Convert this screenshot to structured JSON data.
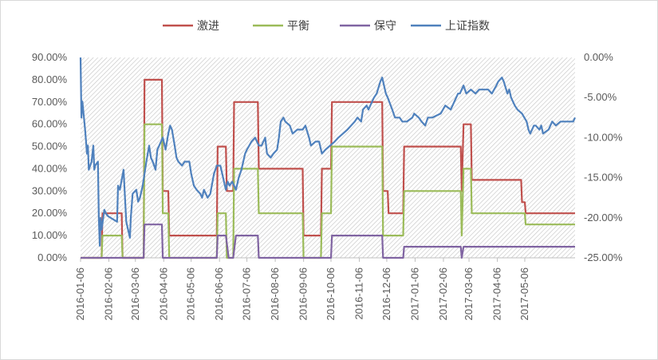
{
  "chart_data": {
    "type": "line",
    "legend": {
      "position": "top"
    },
    "grid": {
      "pattern": "hatched"
    },
    "left_axis": {
      "ylim": [
        0,
        90
      ],
      "ticks": [
        "0.00%",
        "10.00%",
        "20.00%",
        "30.00%",
        "40.00%",
        "50.00%",
        "60.00%",
        "70.00%",
        "80.00%",
        "90.00%"
      ]
    },
    "right_axis": {
      "ylim": [
        -25,
        0
      ],
      "ticks": [
        "-25.00%",
        "-20.00%",
        "-15.00%",
        "-10.00%",
        "-5.00%",
        "0.00%"
      ]
    },
    "x_range": [
      "2016-01-06",
      "2017-06-30"
    ],
    "x_ticks": [
      "2016-01-06",
      "2016-02-06",
      "2016-03-06",
      "2016-04-06",
      "2016-05-06",
      "2016-06-06",
      "2016-07-06",
      "2016-08-06",
      "2016-09-06",
      "2016-10-06",
      "2016-11-06",
      "2016-12-06",
      "2017-01-06",
      "2017-02-06",
      "2017-03-06",
      "2017-04-06",
      "2017-05-06"
    ],
    "series": [
      {
        "name": "激进",
        "color": "#c0504d",
        "axis": "left",
        "points": [
          [
            "2016-01-06",
            0
          ],
          [
            "2016-01-29",
            0
          ],
          [
            "2016-01-30",
            20
          ],
          [
            "2016-02-20",
            20
          ],
          [
            "2016-02-21",
            0
          ],
          [
            "2016-03-15",
            0
          ],
          [
            "2016-03-16",
            80
          ],
          [
            "2016-04-04",
            80
          ],
          [
            "2016-04-05",
            30
          ],
          [
            "2016-04-11",
            30
          ],
          [
            "2016-04-12",
            10
          ],
          [
            "2016-06-03",
            10
          ],
          [
            "2016-06-04",
            50
          ],
          [
            "2016-06-13",
            50
          ],
          [
            "2016-06-14",
            30
          ],
          [
            "2016-06-21",
            30
          ],
          [
            "2016-06-22",
            70
          ],
          [
            "2016-07-18",
            70
          ],
          [
            "2016-07-19",
            40
          ],
          [
            "2016-09-05",
            40
          ],
          [
            "2016-09-06",
            10
          ],
          [
            "2016-09-25",
            10
          ],
          [
            "2016-09-26",
            40
          ],
          [
            "2016-10-06",
            40
          ],
          [
            "2016-10-07",
            70
          ],
          [
            "2016-12-01",
            70
          ],
          [
            "2016-12-02",
            30
          ],
          [
            "2016-12-07",
            30
          ],
          [
            "2016-12-08",
            20
          ],
          [
            "2016-12-24",
            20
          ],
          [
            "2016-12-25",
            50
          ],
          [
            "2017-02-25",
            50
          ],
          [
            "2017-02-26",
            30
          ],
          [
            "2017-02-28",
            60
          ],
          [
            "2017-03-08",
            60
          ],
          [
            "2017-03-09",
            35
          ],
          [
            "2017-05-02",
            35
          ],
          [
            "2017-05-03",
            25
          ],
          [
            "2017-05-06",
            25
          ],
          [
            "2017-05-07",
            20
          ],
          [
            "2017-06-30",
            20
          ]
        ]
      },
      {
        "name": "平衡",
        "color": "#9bbb59",
        "axis": "left",
        "points": [
          [
            "2016-01-06",
            0
          ],
          [
            "2016-01-29",
            0
          ],
          [
            "2016-01-30",
            10
          ],
          [
            "2016-02-20",
            10
          ],
          [
            "2016-02-21",
            0
          ],
          [
            "2016-03-15",
            0
          ],
          [
            "2016-03-16",
            60
          ],
          [
            "2016-04-04",
            60
          ],
          [
            "2016-04-05",
            20
          ],
          [
            "2016-04-11",
            20
          ],
          [
            "2016-04-12",
            0
          ],
          [
            "2016-06-03",
            0
          ],
          [
            "2016-06-04",
            20
          ],
          [
            "2016-06-13",
            20
          ],
          [
            "2016-06-14",
            0
          ],
          [
            "2016-06-21",
            0
          ],
          [
            "2016-06-22",
            40
          ],
          [
            "2016-07-18",
            40
          ],
          [
            "2016-07-19",
            20
          ],
          [
            "2016-09-05",
            20
          ],
          [
            "2016-09-06",
            0
          ],
          [
            "2016-09-25",
            0
          ],
          [
            "2016-09-26",
            20
          ],
          [
            "2016-10-06",
            20
          ],
          [
            "2016-10-07",
            50
          ],
          [
            "2016-12-01",
            50
          ],
          [
            "2016-12-02",
            10
          ],
          [
            "2016-12-24",
            10
          ],
          [
            "2016-12-25",
            30
          ],
          [
            "2017-02-25",
            30
          ],
          [
            "2017-02-26",
            10
          ],
          [
            "2017-02-28",
            40
          ],
          [
            "2017-03-08",
            40
          ],
          [
            "2017-03-09",
            20
          ],
          [
            "2017-05-06",
            20
          ],
          [
            "2017-05-07",
            15
          ],
          [
            "2017-06-30",
            15
          ]
        ]
      },
      {
        "name": "保守",
        "color": "#8064a2",
        "axis": "left",
        "points": [
          [
            "2016-01-06",
            0
          ],
          [
            "2016-03-15",
            0
          ],
          [
            "2016-03-16",
            15
          ],
          [
            "2016-04-04",
            15
          ],
          [
            "2016-04-05",
            0
          ],
          [
            "2016-06-03",
            0
          ],
          [
            "2016-06-04",
            10
          ],
          [
            "2016-06-13",
            10
          ],
          [
            "2016-06-16",
            0
          ],
          [
            "2016-06-21",
            0
          ],
          [
            "2016-06-24",
            10
          ],
          [
            "2016-07-18",
            10
          ],
          [
            "2016-07-19",
            0
          ],
          [
            "2016-09-25",
            0
          ],
          [
            "2016-09-26",
            0
          ],
          [
            "2016-10-06",
            0
          ],
          [
            "2016-10-07",
            10
          ],
          [
            "2016-12-01",
            10
          ],
          [
            "2016-12-02",
            0
          ],
          [
            "2016-12-24",
            0
          ],
          [
            "2016-12-25",
            5
          ],
          [
            "2017-02-25",
            5
          ],
          [
            "2017-02-26",
            0
          ],
          [
            "2017-02-28",
            5
          ],
          [
            "2017-06-30",
            5
          ]
        ]
      },
      {
        "name": "上证指数",
        "color": "#4f81bd",
        "axis": "right",
        "points": [
          [
            "2016-01-06",
            0
          ],
          [
            "2016-01-07",
            -7.5
          ],
          [
            "2016-01-08",
            -5.5
          ],
          [
            "2016-01-11",
            -9
          ],
          [
            "2016-01-12",
            -10.5
          ],
          [
            "2016-01-13",
            -12
          ],
          [
            "2016-01-14",
            -11
          ],
          [
            "2016-01-15",
            -14
          ],
          [
            "2016-01-18",
            -13
          ],
          [
            "2016-01-20",
            -11
          ],
          [
            "2016-01-21",
            -14
          ],
          [
            "2016-01-22",
            -13.5
          ],
          [
            "2016-01-25",
            -13
          ],
          [
            "2016-01-26",
            -20
          ],
          [
            "2016-01-27",
            -23.5
          ],
          [
            "2016-01-28",
            -20
          ],
          [
            "2016-01-29",
            -21.5
          ],
          [
            "2016-02-01",
            -19
          ],
          [
            "2016-02-03",
            -19.5
          ],
          [
            "2016-02-05",
            -19.8
          ],
          [
            "2016-02-15",
            -20.5
          ],
          [
            "2016-02-16",
            -16
          ],
          [
            "2016-02-18",
            -16.5
          ],
          [
            "2016-02-22",
            -14
          ],
          [
            "2016-02-25",
            -20.5
          ],
          [
            "2016-02-29",
            -22.5
          ],
          [
            "2016-03-01",
            -20
          ],
          [
            "2016-03-03",
            -17
          ],
          [
            "2016-03-07",
            -16.5
          ],
          [
            "2016-03-09",
            -18
          ],
          [
            "2016-03-11",
            -17.5
          ],
          [
            "2016-03-14",
            -16
          ],
          [
            "2016-03-16",
            -14.5
          ],
          [
            "2016-03-18",
            -13
          ],
          [
            "2016-03-21",
            -11
          ],
          [
            "2016-03-23",
            -12.5
          ],
          [
            "2016-03-25",
            -13
          ],
          [
            "2016-03-28",
            -14
          ],
          [
            "2016-03-30",
            -11.5
          ],
          [
            "2016-04-01",
            -11
          ],
          [
            "2016-04-05",
            -10
          ],
          [
            "2016-04-08",
            -11.5
          ],
          [
            "2016-04-11",
            -9.5
          ],
          [
            "2016-04-13",
            -8.5
          ],
          [
            "2016-04-15",
            -9
          ],
          [
            "2016-04-18",
            -11
          ],
          [
            "2016-04-20",
            -12.5
          ],
          [
            "2016-04-22",
            -13
          ],
          [
            "2016-04-26",
            -13.5
          ],
          [
            "2016-04-29",
            -13
          ],
          [
            "2016-05-04",
            -13
          ],
          [
            "2016-05-06",
            -14.5
          ],
          [
            "2016-05-09",
            -16
          ],
          [
            "2016-05-12",
            -16.5
          ],
          [
            "2016-05-16",
            -17
          ],
          [
            "2016-05-18",
            -17.5
          ],
          [
            "2016-05-20",
            -16.5
          ],
          [
            "2016-05-24",
            -17.5
          ],
          [
            "2016-05-27",
            -17
          ],
          [
            "2016-05-31",
            -14.5
          ],
          [
            "2016-06-03",
            -13.5
          ],
          [
            "2016-06-07",
            -13.5
          ],
          [
            "2016-06-13",
            -16.5
          ],
          [
            "2016-06-15",
            -15.5
          ],
          [
            "2016-06-17",
            -16
          ],
          [
            "2016-06-20",
            -15.5
          ],
          [
            "2016-06-24",
            -16.5
          ],
          [
            "2016-06-27",
            -15
          ],
          [
            "2016-06-30",
            -14
          ],
          [
            "2016-07-04",
            -12
          ],
          [
            "2016-07-06",
            -11.5
          ],
          [
            "2016-07-11",
            -10.5
          ],
          [
            "2016-07-15",
            -10
          ],
          [
            "2016-07-19",
            -11
          ],
          [
            "2016-07-22",
            -11
          ],
          [
            "2016-07-26",
            -10
          ],
          [
            "2016-07-28",
            -12
          ],
          [
            "2016-08-01",
            -12.5
          ],
          [
            "2016-08-04",
            -12
          ],
          [
            "2016-08-08",
            -11.5
          ],
          [
            "2016-08-10",
            -10
          ],
          [
            "2016-08-12",
            -8
          ],
          [
            "2016-08-15",
            -7.5
          ],
          [
            "2016-08-17",
            -8
          ],
          [
            "2016-08-22",
            -8.5
          ],
          [
            "2016-08-25",
            -9.5
          ],
          [
            "2016-08-30",
            -9
          ],
          [
            "2016-09-05",
            -9
          ],
          [
            "2016-09-08",
            -8.5
          ],
          [
            "2016-09-12",
            -10
          ],
          [
            "2016-09-14",
            -11
          ],
          [
            "2016-09-19",
            -10.5
          ],
          [
            "2016-09-23",
            -10.5
          ],
          [
            "2016-09-26",
            -12
          ],
          [
            "2016-09-30",
            -11.5
          ],
          [
            "2016-10-10",
            -10.5
          ],
          [
            "2016-10-14",
            -10
          ],
          [
            "2016-10-19",
            -9.5
          ],
          [
            "2016-10-24",
            -9
          ],
          [
            "2016-10-28",
            -8.5
          ],
          [
            "2016-11-01",
            -8
          ],
          [
            "2016-11-04",
            -7.5
          ],
          [
            "2016-11-08",
            -8
          ],
          [
            "2016-11-10",
            -6.5
          ],
          [
            "2016-11-14",
            -6
          ],
          [
            "2016-11-16",
            -6.5
          ],
          [
            "2016-11-18",
            -6
          ],
          [
            "2016-11-22",
            -5
          ],
          [
            "2016-11-25",
            -4.5
          ],
          [
            "2016-11-29",
            -3
          ],
          [
            "2016-12-01",
            -2.5
          ],
          [
            "2016-12-05",
            -4.5
          ],
          [
            "2016-12-07",
            -5
          ],
          [
            "2016-12-12",
            -6.5
          ],
          [
            "2016-12-15",
            -7.5
          ],
          [
            "2016-12-20",
            -7.5
          ],
          [
            "2016-12-23",
            -8
          ],
          [
            "2016-12-28",
            -8
          ],
          [
            "2017-01-03",
            -7.5
          ],
          [
            "2017-01-05",
            -7
          ],
          [
            "2017-01-10",
            -7.5
          ],
          [
            "2017-01-13",
            -8
          ],
          [
            "2017-01-17",
            -8.5
          ],
          [
            "2017-01-20",
            -7.5
          ],
          [
            "2017-01-25",
            -7.5
          ],
          [
            "2017-02-03",
            -7
          ],
          [
            "2017-02-08",
            -6
          ],
          [
            "2017-02-14",
            -6.5
          ],
          [
            "2017-02-20",
            -5
          ],
          [
            "2017-02-22",
            -4.5
          ],
          [
            "2017-02-24",
            -4.5
          ],
          [
            "2017-02-28",
            -3.5
          ],
          [
            "2017-03-03",
            -4.5
          ],
          [
            "2017-03-08",
            -4
          ],
          [
            "2017-03-13",
            -4.5
          ],
          [
            "2017-03-17",
            -4
          ],
          [
            "2017-03-22",
            -4
          ],
          [
            "2017-03-27",
            -4
          ],
          [
            "2017-03-31",
            -4.5
          ],
          [
            "2017-04-05",
            -3.5
          ],
          [
            "2017-04-07",
            -3
          ],
          [
            "2017-04-11",
            -2.5
          ],
          [
            "2017-04-13",
            -3
          ],
          [
            "2017-04-17",
            -4.5
          ],
          [
            "2017-04-19",
            -4
          ],
          [
            "2017-04-21",
            -5
          ],
          [
            "2017-04-25",
            -6
          ],
          [
            "2017-04-28",
            -6.5
          ],
          [
            "2017-05-03",
            -7
          ],
          [
            "2017-05-08",
            -8
          ],
          [
            "2017-05-10",
            -9
          ],
          [
            "2017-05-12",
            -9.5
          ],
          [
            "2017-05-16",
            -8.5
          ],
          [
            "2017-05-18",
            -8.5
          ],
          [
            "2017-05-22",
            -9
          ],
          [
            "2017-05-24",
            -8.5
          ],
          [
            "2017-05-26",
            -9.5
          ],
          [
            "2017-06-01",
            -9
          ],
          [
            "2017-06-05",
            -8
          ],
          [
            "2017-06-09",
            -8.5
          ],
          [
            "2017-06-14",
            -8
          ],
          [
            "2017-06-20",
            -8
          ],
          [
            "2017-06-23",
            -8
          ],
          [
            "2017-06-28",
            -8
          ],
          [
            "2017-06-30",
            -7.5
          ]
        ]
      }
    ]
  }
}
